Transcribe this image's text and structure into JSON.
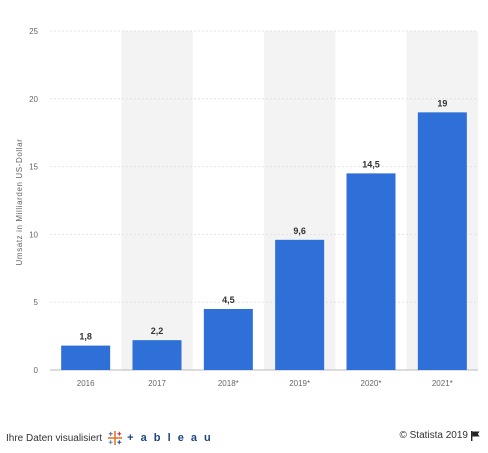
{
  "chart_data": {
    "type": "bar",
    "categories": [
      "2016",
      "2017",
      "2018*",
      "2019*",
      "2020*",
      "2021*"
    ],
    "values": [
      1.8,
      2.2,
      4.5,
      9.6,
      14.5,
      19
    ],
    "value_labels": [
      "1,8",
      "2,2",
      "4,5",
      "9,6",
      "14,5",
      "19"
    ],
    "ylabel": "Umsatz in Milliarden US-Dollar",
    "ylim": [
      0,
      25
    ],
    "yticks": [
      0,
      5,
      10,
      15,
      20,
      25
    ],
    "grid": true,
    "bar_color": "#2e6fd8",
    "band_color": "#f3f3f3",
    "grid_color": "#e2e2e2"
  },
  "footer": {
    "visualize_label": "Ihre Daten visualisiert",
    "tableau_label": "+ a b l e a u",
    "copyright": "© Statista 2019"
  },
  "icons": {
    "tableau": "tableau-cross-icon",
    "flag": "flag-icon"
  }
}
